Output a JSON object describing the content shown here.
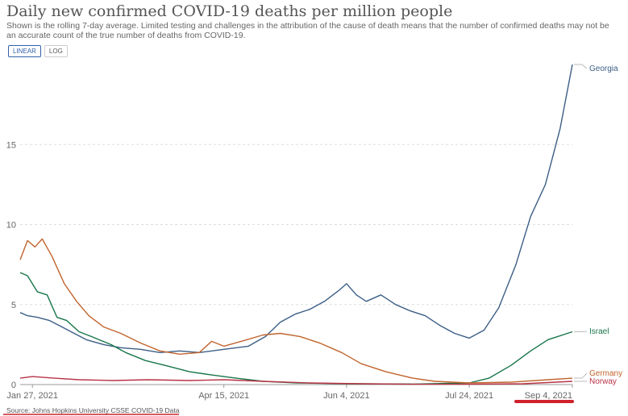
{
  "title": "Daily new confirmed COVID-19 deaths per million people",
  "subtitle": "Shown is the rolling 7-day average. Limited testing and challenges in the attribution of the cause of death means that the number of confirmed deaths may not be an accurate count of the true number of deaths from COVID-19.",
  "scale_toggle": {
    "linear": "LINEAR",
    "log": "LOG",
    "selected": "LINEAR"
  },
  "source": "Source: Johns Hopkins University CSSE COVID-19 Data",
  "annotation_color": "#d0202a",
  "chart_data": {
    "type": "line",
    "x_range": [
      "2021-01-22",
      "2021-09-04"
    ],
    "x_ticks": [
      "Jan 27, 2021",
      "Apr 15, 2021",
      "Jun 4, 2021",
      "Jul 24, 2021",
      "Sep 4, 2021"
    ],
    "x_tick_dates": [
      "2021-01-27",
      "2021-04-15",
      "2021-06-04",
      "2021-07-24",
      "2021-09-04"
    ],
    "y_ticks": [
      0,
      5,
      10,
      15
    ],
    "ylim": [
      0,
      20
    ],
    "grid": true,
    "series": [
      {
        "name": "Georgia",
        "color": "#3c5e86",
        "points": [
          [
            "2021-01-22",
            4.5
          ],
          [
            "2021-01-25",
            4.3
          ],
          [
            "2021-01-29",
            4.2
          ],
          [
            "2021-02-03",
            4.0
          ],
          [
            "2021-02-08",
            3.6
          ],
          [
            "2021-02-13",
            3.2
          ],
          [
            "2021-02-18",
            2.8
          ],
          [
            "2021-02-25",
            2.5
          ],
          [
            "2021-03-04",
            2.3
          ],
          [
            "2021-03-12",
            2.2
          ],
          [
            "2021-03-20",
            2.0
          ],
          [
            "2021-03-28",
            2.1
          ],
          [
            "2021-04-05",
            2.0
          ],
          [
            "2021-04-15",
            2.2
          ],
          [
            "2021-04-25",
            2.4
          ],
          [
            "2021-05-02",
            3.0
          ],
          [
            "2021-05-08",
            3.9
          ],
          [
            "2021-05-14",
            4.4
          ],
          [
            "2021-05-20",
            4.7
          ],
          [
            "2021-05-26",
            5.2
          ],
          [
            "2021-06-01",
            5.9
          ],
          [
            "2021-06-04",
            6.3
          ],
          [
            "2021-06-08",
            5.6
          ],
          [
            "2021-06-12",
            5.2
          ],
          [
            "2021-06-18",
            5.6
          ],
          [
            "2021-06-24",
            5.0
          ],
          [
            "2021-06-30",
            4.6
          ],
          [
            "2021-07-06",
            4.3
          ],
          [
            "2021-07-12",
            3.7
          ],
          [
            "2021-07-18",
            3.2
          ],
          [
            "2021-07-24",
            2.9
          ],
          [
            "2021-07-30",
            3.4
          ],
          [
            "2021-08-05",
            4.8
          ],
          [
            "2021-08-12",
            7.5
          ],
          [
            "2021-08-18",
            10.5
          ],
          [
            "2021-08-24",
            12.5
          ],
          [
            "2021-08-30",
            16.0
          ],
          [
            "2021-09-04",
            20.0
          ]
        ]
      },
      {
        "name": "Israel",
        "color": "#18764a",
        "points": [
          [
            "2021-01-22",
            7.0
          ],
          [
            "2021-01-25",
            6.8
          ],
          [
            "2021-01-29",
            5.8
          ],
          [
            "2021-02-02",
            5.6
          ],
          [
            "2021-02-06",
            4.2
          ],
          [
            "2021-02-10",
            4.0
          ],
          [
            "2021-02-15",
            3.3
          ],
          [
            "2021-02-20",
            3.0
          ],
          [
            "2021-02-28",
            2.5
          ],
          [
            "2021-03-06",
            2.0
          ],
          [
            "2021-03-14",
            1.5
          ],
          [
            "2021-03-22",
            1.2
          ],
          [
            "2021-04-01",
            0.8
          ],
          [
            "2021-04-10",
            0.6
          ],
          [
            "2021-04-20",
            0.4
          ],
          [
            "2021-05-01",
            0.2
          ],
          [
            "2021-05-15",
            0.1
          ],
          [
            "2021-06-04",
            0.05
          ],
          [
            "2021-07-01",
            0.03
          ],
          [
            "2021-07-24",
            0.1
          ],
          [
            "2021-08-01",
            0.4
          ],
          [
            "2021-08-10",
            1.2
          ],
          [
            "2021-08-18",
            2.1
          ],
          [
            "2021-08-25",
            2.8
          ],
          [
            "2021-09-04",
            3.3
          ]
        ]
      },
      {
        "name": "Germany",
        "color": "#c1642e",
        "points": [
          [
            "2021-01-22",
            7.8
          ],
          [
            "2021-01-25",
            9.0
          ],
          [
            "2021-01-28",
            8.6
          ],
          [
            "2021-01-31",
            9.1
          ],
          [
            "2021-02-04",
            8.0
          ],
          [
            "2021-02-09",
            6.3
          ],
          [
            "2021-02-14",
            5.2
          ],
          [
            "2021-02-19",
            4.3
          ],
          [
            "2021-02-25",
            3.6
          ],
          [
            "2021-03-04",
            3.2
          ],
          [
            "2021-03-12",
            2.6
          ],
          [
            "2021-03-20",
            2.1
          ],
          [
            "2021-03-28",
            1.9
          ],
          [
            "2021-04-05",
            2.0
          ],
          [
            "2021-04-10",
            2.7
          ],
          [
            "2021-04-15",
            2.4
          ],
          [
            "2021-04-22",
            2.7
          ],
          [
            "2021-05-01",
            3.1
          ],
          [
            "2021-05-08",
            3.2
          ],
          [
            "2021-05-16",
            3.0
          ],
          [
            "2021-05-24",
            2.6
          ],
          [
            "2021-06-02",
            2.0
          ],
          [
            "2021-06-10",
            1.3
          ],
          [
            "2021-06-20",
            0.8
          ],
          [
            "2021-07-01",
            0.4
          ],
          [
            "2021-07-10",
            0.2
          ],
          [
            "2021-07-24",
            0.1
          ],
          [
            "2021-08-10",
            0.15
          ],
          [
            "2021-08-25",
            0.3
          ],
          [
            "2021-09-04",
            0.4
          ]
        ]
      },
      {
        "name": "Norway",
        "color": "#b83446",
        "points": [
          [
            "2021-01-22",
            0.4
          ],
          [
            "2021-01-27",
            0.5
          ],
          [
            "2021-02-05",
            0.4
          ],
          [
            "2021-02-15",
            0.3
          ],
          [
            "2021-03-01",
            0.25
          ],
          [
            "2021-03-15",
            0.3
          ],
          [
            "2021-04-01",
            0.25
          ],
          [
            "2021-04-15",
            0.3
          ],
          [
            "2021-05-01",
            0.2
          ],
          [
            "2021-05-20",
            0.1
          ],
          [
            "2021-06-10",
            0.05
          ],
          [
            "2021-07-01",
            0.02
          ],
          [
            "2021-07-24",
            0.02
          ],
          [
            "2021-08-15",
            0.05
          ],
          [
            "2021-09-04",
            0.2
          ]
        ]
      }
    ]
  }
}
